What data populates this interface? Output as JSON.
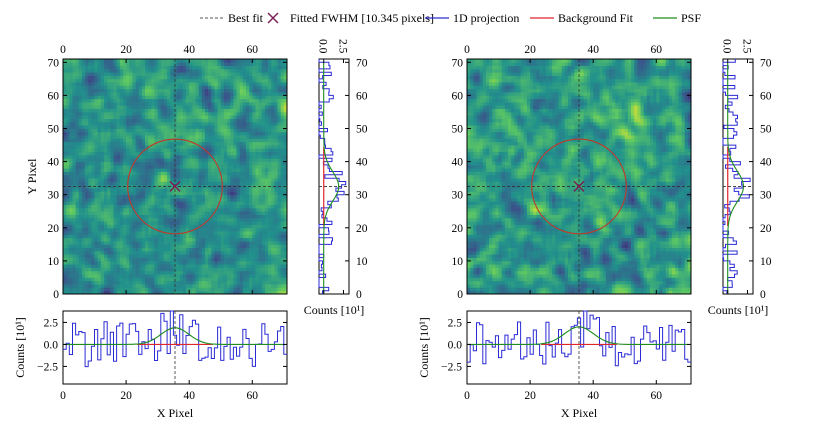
{
  "legend": [
    {
      "label": "Best fit",
      "kind": "dashed-line",
      "color": "#555555"
    },
    {
      "label": "Fitted FWHM [10.345 pixels]",
      "kind": "x-marker",
      "color": "#7b1c56"
    },
    {
      "label": "1D projection",
      "kind": "line",
      "color": "#2b2bd6"
    },
    {
      "label": "Background Fit",
      "kind": "line",
      "color": "#e0262b"
    },
    {
      "label": "PSF",
      "kind": "line",
      "color": "#1e8c1e"
    }
  ],
  "colors": {
    "projection": "#2b2bd6",
    "background": "#e0262b",
    "psf": "#1e8c1e",
    "circle": "#c0392b",
    "marker": "#7b1c56",
    "crosshair": "#333333"
  },
  "labels": {
    "y_pixel": "Y Pixel",
    "x_pixel": "X Pixel",
    "counts_side": "Counts [10¹]",
    "counts_bottom": "Counts [10¹]"
  },
  "chart_data": [
    {
      "type": "heatmap",
      "name": "left-cutout",
      "xlim": [
        0,
        71
      ],
      "ylim": [
        0,
        71
      ],
      "x_ticks": [
        0,
        20,
        40,
        60
      ],
      "y_ticks": [
        0,
        10,
        20,
        30,
        40,
        50,
        60,
        70
      ],
      "best_fit": {
        "x": 35.5,
        "y": 32.5
      },
      "fwhm_circle_radius": 15,
      "show_marker": true,
      "side_ticks": [
        "0.0",
        "2.5"
      ],
      "side_xlim": [
        -0.6,
        3.2
      ],
      "bottom_yticks": [
        "2.5",
        "0.0",
        "−2.5"
      ],
      "bottom_ylim": [
        -4.5,
        3.8
      ],
      "psf_amplitude": 1.9,
      "psf_sigma": 4.4,
      "seed": 17
    },
    {
      "type": "heatmap",
      "name": "right-cutout",
      "xlim": [
        0,
        71
      ],
      "ylim": [
        0,
        71
      ],
      "x_ticks": [
        0,
        20,
        40,
        60
      ],
      "y_ticks": [
        0,
        10,
        20,
        30,
        40,
        50,
        60,
        70
      ],
      "best_fit": {
        "x": 35.5,
        "y": 32.5
      },
      "fwhm_circle_radius": 15,
      "show_marker": true,
      "side_ticks": [
        "0.0",
        "2.5"
      ],
      "side_xlim": [
        -0.6,
        3.2
      ],
      "bottom_yticks": [
        "2.5",
        "0.0",
        "−2.5"
      ],
      "bottom_ylim": [
        -4.5,
        3.8
      ],
      "psf_amplitude": 2.0,
      "psf_sigma": 4.6,
      "seed": 53
    }
  ]
}
